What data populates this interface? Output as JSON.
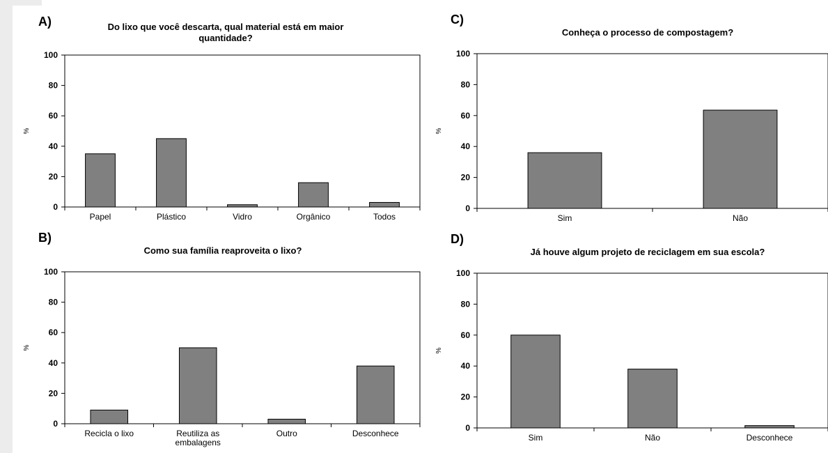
{
  "chart_data": [
    {
      "type": "bar",
      "letter": "A)",
      "title_lines": [
        "Do lixo que você descarta, qual material está em maior",
        "quantidade?"
      ],
      "ylabel": "%",
      "ylim": [
        0,
        100
      ],
      "yticks": [
        0,
        20,
        40,
        60,
        80,
        100
      ],
      "categories": [
        [
          "Papel"
        ],
        [
          "Plástico"
        ],
        [
          "Vidro"
        ],
        [
          "Orgânico"
        ],
        [
          "Todos"
        ]
      ],
      "values": [
        35,
        45,
        1.5,
        16,
        3
      ],
      "colors": {
        "bar": "#808080"
      }
    },
    {
      "type": "bar",
      "letter": "C)",
      "title_lines": [
        "Conheça o processo de compostagem?"
      ],
      "ylabel": "%",
      "ylim": [
        0,
        100
      ],
      "yticks": [
        0,
        20,
        40,
        60,
        80,
        100
      ],
      "categories": [
        [
          "Sim"
        ],
        [
          "Não"
        ]
      ],
      "values": [
        36,
        63.5
      ],
      "colors": {
        "bar": "#808080"
      }
    },
    {
      "type": "bar",
      "letter": "B)",
      "title_lines": [
        "Como sua família reaproveita o lixo?"
      ],
      "ylabel": "%",
      "ylim": [
        0,
        100
      ],
      "yticks": [
        0,
        20,
        40,
        60,
        80,
        100
      ],
      "categories": [
        [
          "Recicla o lixo"
        ],
        [
          "Reutiliza as",
          "embalagens"
        ],
        [
          "Outro"
        ],
        [
          "Desconhece"
        ]
      ],
      "values": [
        9,
        50,
        3,
        38
      ],
      "colors": {
        "bar": "#808080"
      }
    },
    {
      "type": "bar",
      "letter": "D)",
      "title_lines": [
        "Já houve algum projeto de reciclagem em sua escola?"
      ],
      "ylabel": "%",
      "ylim": [
        0,
        100
      ],
      "yticks": [
        0,
        20,
        40,
        60,
        80,
        100
      ],
      "categories": [
        [
          "Sim"
        ],
        [
          "Não"
        ],
        [
          "Desconhece"
        ]
      ],
      "values": [
        60,
        38,
        1.5
      ],
      "colors": {
        "bar": "#808080"
      }
    }
  ]
}
